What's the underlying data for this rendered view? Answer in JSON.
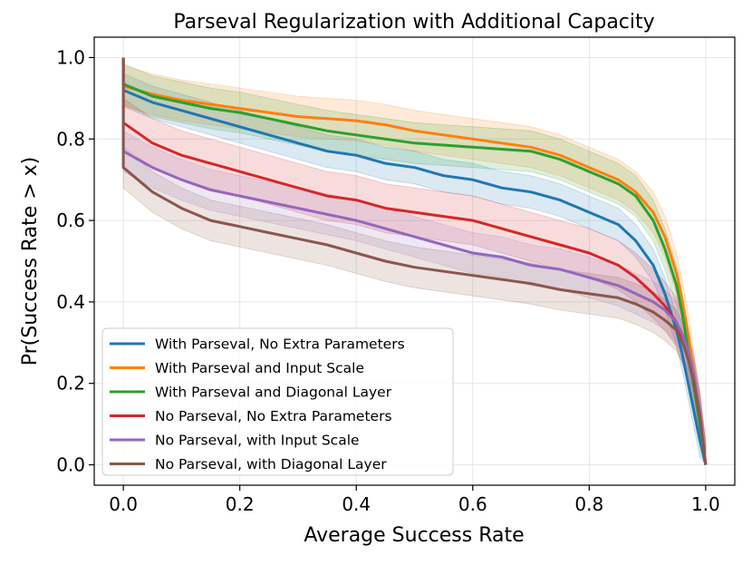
{
  "chart_data": {
    "type": "line",
    "title": "Parseval Regularization with Additional Capacity",
    "xlabel": "Average Success Rate",
    "ylabel": "Pr(Success Rate > x)",
    "xlim": [
      -0.05,
      1.05
    ],
    "ylim": [
      -0.05,
      1.05
    ],
    "xticks": [
      0.0,
      0.2,
      0.4,
      0.6,
      0.8,
      1.0
    ],
    "yticks": [
      0.0,
      0.2,
      0.4,
      0.6,
      0.8,
      1.0
    ],
    "xtick_labels": [
      "0.0",
      "0.2",
      "0.4",
      "0.6",
      "0.8",
      "1.0"
    ],
    "ytick_labels": [
      "0.0",
      "0.2",
      "0.4",
      "0.6",
      "0.8",
      "1.0"
    ],
    "grid": true,
    "legend_position": "lower-left",
    "series": [
      {
        "name": "With Parseval, No Extra Parameters",
        "color": "#1f77b4",
        "x": [
          0.0,
          0.0,
          0.05,
          0.1,
          0.15,
          0.2,
          0.25,
          0.3,
          0.35,
          0.4,
          0.45,
          0.5,
          0.55,
          0.6,
          0.65,
          0.7,
          0.75,
          0.8,
          0.85,
          0.88,
          0.91,
          0.93,
          0.95,
          0.96,
          0.97,
          0.98,
          0.99,
          1.0
        ],
        "y": [
          1.0,
          0.92,
          0.89,
          0.87,
          0.85,
          0.83,
          0.81,
          0.79,
          0.77,
          0.76,
          0.74,
          0.73,
          0.71,
          0.7,
          0.68,
          0.67,
          0.65,
          0.62,
          0.59,
          0.55,
          0.49,
          0.42,
          0.33,
          0.27,
          0.2,
          0.13,
          0.06,
          0.0
        ],
        "band_halfwidth": 0.04
      },
      {
        "name": "With Parseval and Input Scale",
        "color": "#ff7f0e",
        "x": [
          0.0,
          0.0,
          0.05,
          0.1,
          0.15,
          0.2,
          0.25,
          0.3,
          0.35,
          0.4,
          0.45,
          0.5,
          0.55,
          0.6,
          0.65,
          0.7,
          0.75,
          0.8,
          0.85,
          0.88,
          0.91,
          0.93,
          0.95,
          0.96,
          0.97,
          0.98,
          0.99,
          1.0
        ],
        "y": [
          1.0,
          0.93,
          0.91,
          0.895,
          0.885,
          0.875,
          0.865,
          0.855,
          0.85,
          0.845,
          0.835,
          0.82,
          0.81,
          0.8,
          0.79,
          0.78,
          0.76,
          0.73,
          0.7,
          0.67,
          0.62,
          0.56,
          0.47,
          0.4,
          0.32,
          0.22,
          0.12,
          0.0
        ],
        "band_halfwidth": 0.05
      },
      {
        "name": "With Parseval and Diagonal Layer",
        "color": "#2ca02c",
        "x": [
          0.0,
          0.0,
          0.05,
          0.1,
          0.15,
          0.2,
          0.25,
          0.3,
          0.35,
          0.4,
          0.45,
          0.5,
          0.55,
          0.6,
          0.65,
          0.7,
          0.75,
          0.8,
          0.85,
          0.88,
          0.91,
          0.93,
          0.95,
          0.96,
          0.97,
          0.98,
          0.99,
          1.0
        ],
        "y": [
          1.0,
          0.935,
          0.905,
          0.89,
          0.875,
          0.865,
          0.85,
          0.835,
          0.82,
          0.81,
          0.8,
          0.79,
          0.785,
          0.78,
          0.775,
          0.77,
          0.75,
          0.72,
          0.69,
          0.66,
          0.6,
          0.53,
          0.44,
          0.37,
          0.28,
          0.19,
          0.1,
          0.0
        ],
        "band_halfwidth": 0.05
      },
      {
        "name": "No Parseval, No Extra Parameters",
        "color": "#d62728",
        "x": [
          0.0,
          0.0,
          0.05,
          0.1,
          0.15,
          0.2,
          0.25,
          0.3,
          0.35,
          0.4,
          0.45,
          0.5,
          0.55,
          0.6,
          0.65,
          0.7,
          0.75,
          0.8,
          0.85,
          0.88,
          0.91,
          0.93,
          0.95,
          0.96,
          0.97,
          0.98,
          0.99,
          1.0
        ],
        "y": [
          1.0,
          0.84,
          0.79,
          0.76,
          0.74,
          0.72,
          0.7,
          0.68,
          0.66,
          0.65,
          0.63,
          0.62,
          0.61,
          0.6,
          0.58,
          0.56,
          0.54,
          0.52,
          0.49,
          0.46,
          0.42,
          0.39,
          0.35,
          0.31,
          0.26,
          0.2,
          0.12,
          0.0
        ],
        "band_halfwidth": 0.06
      },
      {
        "name": "No Parseval, with Input Scale",
        "color": "#9467bd",
        "x": [
          0.0,
          0.0,
          0.05,
          0.1,
          0.15,
          0.2,
          0.25,
          0.3,
          0.35,
          0.4,
          0.45,
          0.5,
          0.55,
          0.6,
          0.65,
          0.7,
          0.75,
          0.8,
          0.85,
          0.88,
          0.91,
          0.93,
          0.95,
          0.96,
          0.97,
          0.98,
          0.99,
          1.0
        ],
        "y": [
          1.0,
          0.77,
          0.73,
          0.7,
          0.675,
          0.66,
          0.645,
          0.63,
          0.615,
          0.6,
          0.58,
          0.56,
          0.54,
          0.52,
          0.51,
          0.49,
          0.48,
          0.46,
          0.44,
          0.42,
          0.4,
          0.38,
          0.35,
          0.32,
          0.28,
          0.22,
          0.13,
          0.0
        ],
        "band_halfwidth": 0.05
      },
      {
        "name": "No Parseval, with Diagonal Layer",
        "color": "#8c564b",
        "x": [
          0.0,
          0.0,
          0.05,
          0.1,
          0.15,
          0.2,
          0.25,
          0.3,
          0.35,
          0.4,
          0.45,
          0.5,
          0.55,
          0.6,
          0.65,
          0.7,
          0.75,
          0.8,
          0.85,
          0.88,
          0.91,
          0.93,
          0.95,
          0.96,
          0.97,
          0.98,
          0.99,
          1.0
        ],
        "y": [
          1.0,
          0.73,
          0.67,
          0.63,
          0.6,
          0.585,
          0.57,
          0.555,
          0.54,
          0.52,
          0.5,
          0.485,
          0.475,
          0.465,
          0.455,
          0.445,
          0.43,
          0.42,
          0.41,
          0.395,
          0.375,
          0.355,
          0.33,
          0.3,
          0.26,
          0.2,
          0.12,
          0.0
        ],
        "band_halfwidth": 0.05
      }
    ]
  }
}
